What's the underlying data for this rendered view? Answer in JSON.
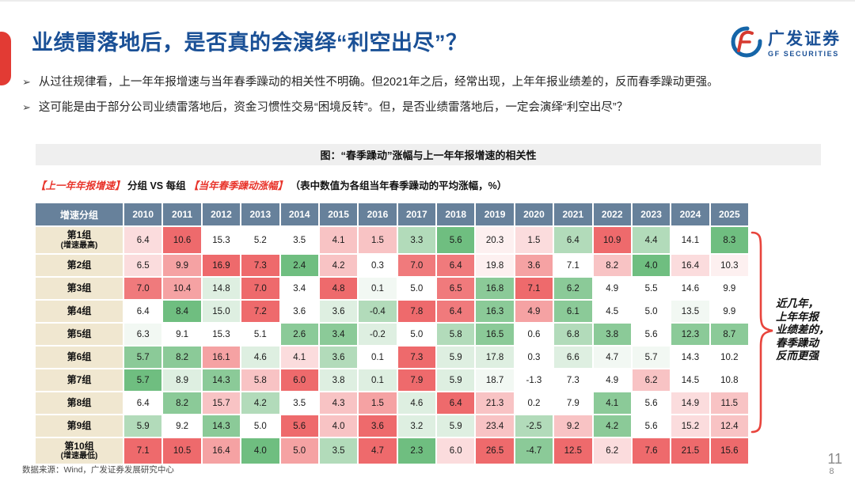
{
  "header": {
    "title": "业绩雷落地后，是否真的会演绎“利空出尽”？",
    "logo_cn": "广发证券",
    "logo_en": "GF SECURITIES"
  },
  "bullets": [
    "从过往规律看，上一年年报增速与当年春季躁动的相关性不明确。但2021年之后，经常出现，上年年报业绩差的，反而春季躁动更强。",
    "这可能是由于部分公司业绩雷落地后，资金习惯性交易“困境反转”。但，是否业绩雷落地后，一定会演绎“利空出尽”？"
  ],
  "figure": {
    "caption": "图：“春季躁动”涨幅与上一年年报增速的相关性",
    "subtitle_red1": "【上一年年报增速】",
    "subtitle_mid": "分组 VS 每组",
    "subtitle_red2": "【当年春季躁动涨幅】",
    "subtitle_note": "（表中数值为各组当年春季躁动的平均涨幅，%）"
  },
  "annotation": {
    "lines": [
      "近几年，",
      "上年年报",
      "业绩差的，",
      "春季躁动",
      "反而更强"
    ],
    "brace_color": "#E8443C"
  },
  "footer": {
    "source": "数据来源：Wind，广发证券发展研究中心",
    "page_top": "11",
    "page_bottom": "8"
  },
  "chart_data": {
    "type": "heatmap",
    "title": "图：“春季躁动”涨幅与上一年年报增速的相关性",
    "unit": "%",
    "corner_label": "增速分组",
    "columns": [
      "2010",
      "2011",
      "2012",
      "2013",
      "2014",
      "2015",
      "2016",
      "2017",
      "2018",
      "2019",
      "2020",
      "2021",
      "2022",
      "2023",
      "2024",
      "2025"
    ],
    "palette": {
      "r4": "#EE6A6C",
      "r3": "#F07A7C",
      "r2": "#F5A2A3",
      "r1": "#F8C3C4",
      "r0": "#FBDCDD",
      "p0": "#FDF0F0",
      "w": "#FFFFFF",
      "g0": "#F2F8F3",
      "g1": "#DEEFE1",
      "g2": "#B2DBBA",
      "g3": "#8BCA98",
      "g4": "#6FBE80"
    },
    "rows": [
      {
        "label": "第1组",
        "sublabel": "(增速最高)",
        "values": [
          "6.4",
          "10.6",
          "15.3",
          "5.2",
          "3.5",
          "4.1",
          "1.5",
          "3.3",
          "5.6",
          "20.3",
          "1.5",
          "6.4",
          "10.9",
          "4.4",
          "14.1",
          "8.3"
        ],
        "colors": [
          "r0",
          "r4",
          "w",
          "w",
          "w",
          "r1",
          "r1",
          "g2",
          "g4",
          "p0",
          "r0",
          "g2",
          "r4",
          "g2",
          "w",
          "g4"
        ]
      },
      {
        "label": "第2组",
        "sublabel": "",
        "values": [
          "6.5",
          "9.9",
          "16.9",
          "7.3",
          "2.4",
          "4.2",
          "0.3",
          "7.0",
          "6.4",
          "19.8",
          "3.6",
          "7.1",
          "8.2",
          "4.0",
          "16.4",
          "10.3"
        ],
        "colors": [
          "r0",
          "r2",
          "r4",
          "r4",
          "g4",
          "r1",
          "w",
          "r3",
          "r3",
          "p0",
          "r2",
          "w",
          "r1",
          "g4",
          "r0",
          "p0"
        ]
      },
      {
        "label": "第3组",
        "sublabel": "",
        "values": [
          "7.0",
          "10.4",
          "14.8",
          "7.0",
          "3.4",
          "4.8",
          "0.1",
          "5.0",
          "6.5",
          "16.8",
          "7.1",
          "6.2",
          "4.9",
          "5.5",
          "14.6",
          "9.9"
        ],
        "colors": [
          "r3",
          "r2",
          "g1",
          "r4",
          "w",
          "r4",
          "g0",
          "w",
          "r3",
          "g3",
          "r4",
          "g3",
          "w",
          "w",
          "w",
          "w"
        ]
      },
      {
        "label": "第4组",
        "sublabel": "",
        "values": [
          "6.4",
          "8.4",
          "15.0",
          "7.2",
          "3.6",
          "3.6",
          "-0.4",
          "7.8",
          "6.4",
          "16.3",
          "4.9",
          "6.1",
          "4.5",
          "5.0",
          "13.5",
          "9.9"
        ],
        "colors": [
          "w",
          "g4",
          "g1",
          "r4",
          "w",
          "g1",
          "g2",
          "r4",
          "r3",
          "g3",
          "r2",
          "g3",
          "w",
          "w",
          "g0",
          "w"
        ]
      },
      {
        "label": "第5组",
        "sublabel": "",
        "values": [
          "6.3",
          "9.1",
          "15.3",
          "5.1",
          "2.6",
          "3.4",
          "-0.2",
          "5.0",
          "5.8",
          "16.5",
          "0.6",
          "6.8",
          "3.8",
          "5.6",
          "12.3",
          "8.7"
        ],
        "colors": [
          "g0",
          "w",
          "w",
          "w",
          "g3",
          "g3",
          "g1",
          "w",
          "g2",
          "g3",
          "w",
          "g2",
          "g3",
          "w",
          "g3",
          "g3"
        ]
      },
      {
        "label": "第6组",
        "sublabel": "",
        "values": [
          "5.7",
          "8.2",
          "16.1",
          "4.6",
          "4.1",
          "3.6",
          "0.1",
          "7.3",
          "5.9",
          "17.8",
          "0.3",
          "6.6",
          "4.7",
          "5.7",
          "14.3",
          "10.2"
        ],
        "colors": [
          "g3",
          "g3",
          "r2",
          "g1",
          "r0",
          "g2",
          "w",
          "r4",
          "g1",
          "g1",
          "w",
          "g1",
          "g0",
          "g0",
          "w",
          "w"
        ]
      },
      {
        "label": "第7组",
        "sublabel": "",
        "values": [
          "5.7",
          "8.9",
          "14.3",
          "5.8",
          "6.0",
          "3.8",
          "0.1",
          "7.9",
          "5.9",
          "18.7",
          "-1.3",
          "7.3",
          "4.9",
          "6.2",
          "14.5",
          "10.8"
        ],
        "colors": [
          "g4",
          "g1",
          "g3",
          "r1",
          "r4",
          "g1",
          "g1",
          "r4",
          "g1",
          "g0",
          "w",
          "w",
          "w",
          "r1",
          "w",
          "w"
        ]
      },
      {
        "label": "第8组",
        "sublabel": "",
        "values": [
          "6.4",
          "8.2",
          "15.7",
          "4.2",
          "3.5",
          "4.3",
          "1.5",
          "4.6",
          "6.4",
          "21.3",
          "0.2",
          "7.9",
          "4.1",
          "5.6",
          "14.9",
          "11.5"
        ],
        "colors": [
          "w",
          "g3",
          "r1",
          "g2",
          "w",
          "r1",
          "r2",
          "g1",
          "r4",
          "r1",
          "w",
          "w",
          "g3",
          "w",
          "r0",
          "r1"
        ]
      },
      {
        "label": "第9组",
        "sublabel": "",
        "values": [
          "5.9",
          "9.2",
          "14.3",
          "5.0",
          "5.6",
          "4.0",
          "3.6",
          "3.2",
          "5.9",
          "23.4",
          "-2.5",
          "9.2",
          "4.2",
          "5.6",
          "15.2",
          "12.4"
        ],
        "colors": [
          "g2",
          "w",
          "g3",
          "w",
          "r4",
          "r1",
          "r4",
          "g1",
          "g1",
          "r1",
          "g2",
          "r1",
          "g3",
          "w",
          "r0",
          "r1"
        ]
      },
      {
        "label": "第10组",
        "sublabel": "(增速最低)",
        "values": [
          "7.1",
          "10.5",
          "16.4",
          "4.0",
          "5.0",
          "3.5",
          "4.7",
          "2.3",
          "6.0",
          "26.5",
          "-4.7",
          "12.5",
          "6.2",
          "7.6",
          "21.5",
          "15.6"
        ],
        "colors": [
          "r4",
          "r4",
          "r2",
          "g4",
          "r2",
          "g2",
          "r4",
          "g4",
          "r0",
          "r4",
          "g3",
          "r4",
          "r0",
          "r4",
          "r4",
          "r4"
        ]
      }
    ]
  }
}
